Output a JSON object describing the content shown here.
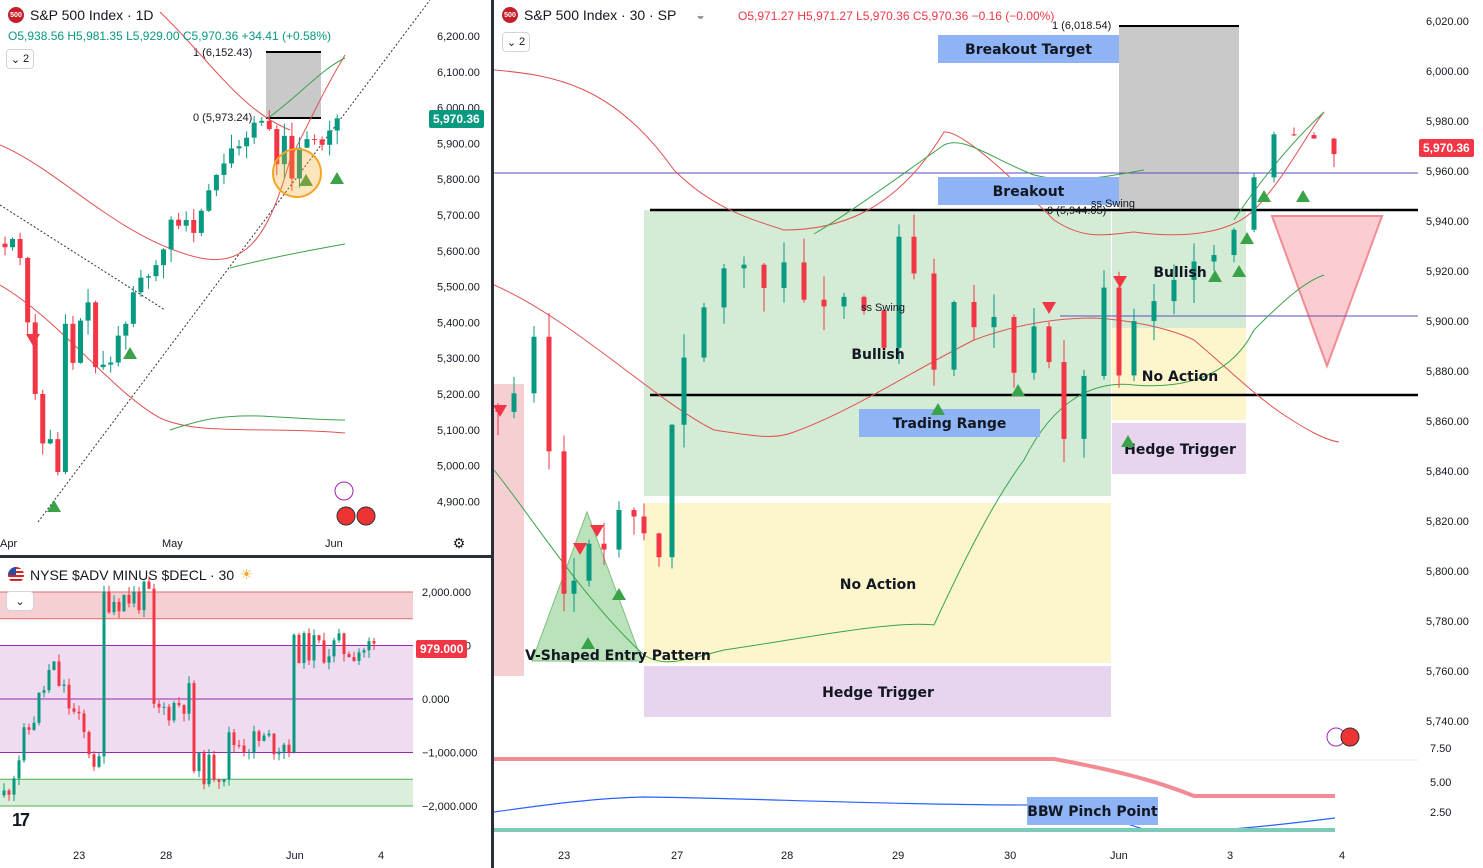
{
  "colors": {
    "up": "#089981",
    "down": "#f23645",
    "accent": "#2962ff",
    "greenZone": "#d4ecd6",
    "yellowZone": "#fdf6cd",
    "purpleZone": "#e7d4ef",
    "blueLabel": "#8fb4f5",
    "redZone": "#f6cfd2",
    "purpleBand": "#efdcf1"
  },
  "top_left": {
    "symbol_icon": "500",
    "title": "S&P 500 Index · 1D",
    "ohlc": {
      "o": "O5,938.56",
      "h": "H5,981.35",
      "l": "L5,929.00",
      "c": "C5,970.36",
      "chg": "+34.41 (+0.58%)"
    },
    "collapse_label": "2",
    "price_badge": "5,970.36",
    "yticks": [
      "6,200.00",
      "6,100.00",
      "6,000.00",
      "5,900.00",
      "5,800.00",
      "5,700.00",
      "5,600.00",
      "5,500.00",
      "5,400.00",
      "5,300.00",
      "5,200.00",
      "5,100.00",
      "5,000.00",
      "4,900.00"
    ],
    "xticks": [
      "Apr",
      "May",
      "Jun"
    ],
    "fib_top": "1 (6,152.43)",
    "fib_zero": "0 (5,973.24)"
  },
  "bottom_left": {
    "title": "NYSE $ADV MINUS $DECL · 30",
    "yticks": [
      "2,000.000",
      "1,000.000",
      "0.000",
      "−1,000.000",
      "−2,000.000"
    ],
    "price_badge": "979.000",
    "xticks": [
      "23",
      "28",
      "Jun",
      "4"
    ],
    "tv_logo": "17"
  },
  "right": {
    "symbol_icon": "500",
    "title": "S&P 500 Index · 30 · SP",
    "ohlc": {
      "o": "O5,971.27",
      "h": "H5,971.27",
      "l": "L5,970.36",
      "c": "C5,970.36",
      "chg": "−0.16 (−0.00%)"
    },
    "collapse_label": "2",
    "price_badge": "5,970.36",
    "yticks": [
      "6,020.00",
      "6,000.00",
      "5,980.00",
      "5,960.00",
      "5,940.00",
      "5,920.00",
      "5,900.00",
      "5,880.00",
      "5,860.00",
      "5,840.00",
      "5,820.00",
      "5,800.00",
      "5,780.00",
      "5,760.00",
      "5,740.00"
    ],
    "bbw_ticks": [
      "7.50",
      "5.00",
      "2.50"
    ],
    "xticks": [
      "23",
      "27",
      "28",
      "29",
      "30",
      "Jun",
      "3",
      "4"
    ],
    "fib_top": "1 (6,018.54)",
    "fib_zero": "0 (5,944.05)",
    "swing1": "ss Swing",
    "swing2": "ss Swing",
    "labels": {
      "breakout_target": "Breakout Target",
      "breakout": "Breakout",
      "bullish1": "Bullish",
      "bullish2": "Bullish",
      "no_action1": "No Action",
      "no_action2": "No Action",
      "trading_range": "Trading Range",
      "hedge_trigger1": "Hedge Trigger",
      "hedge_trigger2": "Hedge Trigger",
      "v_pattern": "V-Shaped Entry Pattern",
      "bbw": "BBW Pinch Point"
    }
  },
  "chart_data": [
    {
      "type": "candlestick",
      "title": "S&P 500 Index · 1D",
      "ylim": [
        4820,
        6250
      ],
      "x_labels": [
        "Apr",
        "May",
        "Jun"
      ],
      "closes": [
        5610,
        5633,
        5580,
        5400,
        5200,
        5062,
        5074,
        4982,
        5396,
        5287,
        5405,
        5456,
        5275,
        5282,
        5288,
        5363,
        5396,
        5484,
        5525,
        5529,
        5560,
        5604,
        5687,
        5670,
        5686,
        5650,
        5712,
        5769,
        5812,
        5844,
        5886,
        5892,
        5916,
        5958,
        5963,
        5940,
        5842,
        5921,
        5802,
        5888,
        5912,
        5911,
        5896,
        5936,
        5970
      ]
    },
    {
      "type": "line",
      "title": "NYSE $ADV MINUS $DECL · 30",
      "ylim": [
        -2300,
        2300
      ],
      "x_labels": [
        "23",
        "28",
        "Jun",
        "4"
      ],
      "last": 979
    },
    {
      "type": "candlestick",
      "title": "S&P 500 Index · 30 · SP",
      "ylim": [
        5730,
        6025
      ],
      "x_labels": [
        "23",
        "27",
        "28",
        "29",
        "30",
        "Jun",
        "3",
        "4"
      ],
      "levels": {
        "breakout": 5944.05,
        "range_low": 5871,
        "target": 6018.54
      }
    }
  ]
}
